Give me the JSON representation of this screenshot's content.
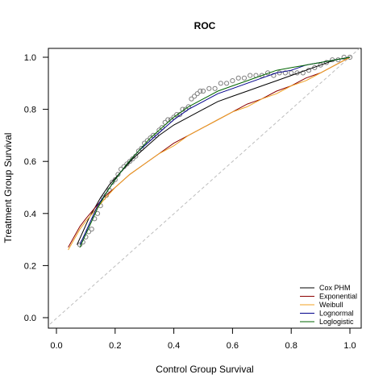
{
  "chart_data": {
    "type": "line",
    "title": "ROC",
    "xlabel": "Control Group Survival",
    "ylabel": "Treatment Group Survival",
    "xlim": [
      0,
      1
    ],
    "ylim": [
      0,
      1
    ],
    "xticks": [
      "0.0",
      "0.2",
      "0.4",
      "0.6",
      "0.8",
      "1.0"
    ],
    "yticks": [
      "0.0",
      "0.2",
      "0.4",
      "0.6",
      "0.8",
      "1.0"
    ],
    "legend_position": "bottom-right",
    "reference_line": {
      "x": [
        0,
        1
      ],
      "y": [
        0,
        1
      ],
      "color": "#bdbdbd"
    },
    "series": [
      {
        "name": "Cox PHM",
        "color": "#000000",
        "x": [
          0.07,
          0.09,
          0.11,
          0.13,
          0.15,
          0.18,
          0.22,
          0.26,
          0.3,
          0.35,
          0.4,
          0.45,
          0.5,
          0.55,
          0.6,
          0.65,
          0.7,
          0.75,
          0.8,
          0.85,
          0.9,
          0.95,
          1.0
        ],
        "y": [
          0.28,
          0.33,
          0.38,
          0.42,
          0.46,
          0.51,
          0.56,
          0.61,
          0.65,
          0.7,
          0.74,
          0.77,
          0.8,
          0.83,
          0.85,
          0.87,
          0.89,
          0.91,
          0.93,
          0.95,
          0.97,
          0.99,
          1.0
        ]
      },
      {
        "name": "Exponential",
        "color": "#8b0000",
        "x": [
          0.04,
          0.06,
          0.08,
          0.1,
          0.13,
          0.16,
          0.2,
          0.25,
          0.3,
          0.35,
          0.4,
          0.45,
          0.5,
          0.55,
          0.6,
          0.65,
          0.7,
          0.75,
          0.8,
          0.85,
          0.9,
          0.95,
          1.0
        ],
        "y": [
          0.27,
          0.31,
          0.35,
          0.38,
          0.42,
          0.46,
          0.5,
          0.55,
          0.59,
          0.63,
          0.67,
          0.7,
          0.73,
          0.76,
          0.79,
          0.82,
          0.84,
          0.87,
          0.89,
          0.92,
          0.94,
          0.97,
          1.0
        ]
      },
      {
        "name": "Weibull",
        "color": "#f0a020",
        "x": [
          0.04,
          0.06,
          0.08,
          0.1,
          0.13,
          0.16,
          0.2,
          0.25,
          0.3,
          0.35,
          0.4,
          0.45,
          0.5,
          0.55,
          0.6,
          0.65,
          0.7,
          0.75,
          0.8,
          0.85,
          0.9,
          0.95,
          1.0
        ],
        "y": [
          0.26,
          0.3,
          0.34,
          0.37,
          0.41,
          0.45,
          0.5,
          0.55,
          0.59,
          0.63,
          0.66,
          0.7,
          0.73,
          0.76,
          0.79,
          0.81,
          0.84,
          0.86,
          0.89,
          0.91,
          0.94,
          0.97,
          1.0
        ]
      },
      {
        "name": "Lognormal",
        "color": "#00008b",
        "x": [
          0.08,
          0.1,
          0.12,
          0.14,
          0.17,
          0.2,
          0.24,
          0.28,
          0.32,
          0.36,
          0.4,
          0.45,
          0.5,
          0.55,
          0.6,
          0.65,
          0.7,
          0.75,
          0.8,
          0.85,
          0.9,
          0.95,
          1.0
        ],
        "y": [
          0.28,
          0.33,
          0.38,
          0.43,
          0.48,
          0.53,
          0.59,
          0.64,
          0.68,
          0.72,
          0.76,
          0.8,
          0.83,
          0.86,
          0.88,
          0.9,
          0.92,
          0.94,
          0.95,
          0.97,
          0.98,
          0.99,
          1.0
        ]
      },
      {
        "name": "Loglogistic",
        "color": "#006400",
        "x": [
          0.08,
          0.1,
          0.12,
          0.14,
          0.17,
          0.2,
          0.24,
          0.28,
          0.32,
          0.36,
          0.4,
          0.45,
          0.5,
          0.55,
          0.6,
          0.65,
          0.7,
          0.75,
          0.8,
          0.85,
          0.9,
          0.95,
          1.0
        ],
        "y": [
          0.27,
          0.32,
          0.37,
          0.42,
          0.48,
          0.53,
          0.59,
          0.64,
          0.69,
          0.73,
          0.77,
          0.81,
          0.84,
          0.87,
          0.89,
          0.91,
          0.93,
          0.95,
          0.96,
          0.97,
          0.98,
          0.99,
          1.0
        ]
      }
    ],
    "empirical_points": {
      "color": "#808080",
      "x": [
        0.08,
        0.09,
        0.1,
        0.11,
        0.12,
        0.13,
        0.14,
        0.15,
        0.16,
        0.17,
        0.18,
        0.19,
        0.2,
        0.21,
        0.22,
        0.23,
        0.24,
        0.25,
        0.26,
        0.27,
        0.28,
        0.29,
        0.3,
        0.31,
        0.32,
        0.33,
        0.34,
        0.35,
        0.36,
        0.37,
        0.38,
        0.39,
        0.4,
        0.41,
        0.42,
        0.43,
        0.44,
        0.45,
        0.46,
        0.47,
        0.48,
        0.49,
        0.5,
        0.52,
        0.54,
        0.56,
        0.58,
        0.6,
        0.62,
        0.64,
        0.66,
        0.68,
        0.7,
        0.72,
        0.74,
        0.76,
        0.78,
        0.8,
        0.82,
        0.84,
        0.86,
        0.88,
        0.9,
        0.92,
        0.94,
        0.96,
        0.98,
        1.0
      ],
      "y": [
        0.28,
        0.29,
        0.31,
        0.33,
        0.34,
        0.38,
        0.4,
        0.43,
        0.46,
        0.47,
        0.49,
        0.52,
        0.53,
        0.55,
        0.57,
        0.58,
        0.59,
        0.6,
        0.61,
        0.62,
        0.64,
        0.65,
        0.67,
        0.68,
        0.69,
        0.7,
        0.7,
        0.72,
        0.73,
        0.75,
        0.76,
        0.76,
        0.77,
        0.78,
        0.78,
        0.8,
        0.8,
        0.81,
        0.84,
        0.85,
        0.86,
        0.87,
        0.87,
        0.88,
        0.88,
        0.9,
        0.9,
        0.91,
        0.92,
        0.92,
        0.93,
        0.93,
        0.93,
        0.94,
        0.93,
        0.94,
        0.94,
        0.94,
        0.94,
        0.94,
        0.95,
        0.96,
        0.97,
        0.98,
        0.99,
        0.99,
        1.0,
        1.0
      ]
    }
  }
}
